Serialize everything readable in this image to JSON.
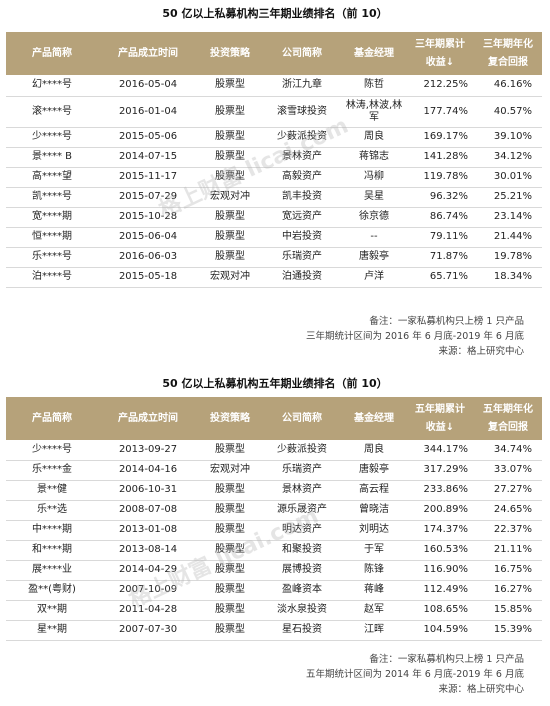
{
  "tables": [
    {
      "title": "50 亿以上私募机构三年期业绩排名（前 10）",
      "headers": {
        "name": "产品简称",
        "date": "产品成立时间",
        "strategy": "投资策略",
        "company": "公司简称",
        "manager": "基金经理",
        "ret_total": [
          "三年期累计",
          "收益↓"
        ],
        "ret_annual": [
          "三年期年化",
          "复合回报"
        ]
      },
      "rows": [
        {
          "name": "幻****号",
          "date": "2016-05-04",
          "strategy": "股票型",
          "company": "浙江九章",
          "manager": "陈哲",
          "ret_total": "212.25%",
          "ret_annual": "46.16%"
        },
        {
          "name": "滚****号",
          "date": "2016-01-04",
          "strategy": "股票型",
          "company": "滚雪球投资",
          "manager": "林涛,林波,林军",
          "ret_total": "177.74%",
          "ret_annual": "40.57%"
        },
        {
          "name": "少****号",
          "date": "2015-05-06",
          "strategy": "股票型",
          "company": "少薮派投资",
          "manager": "周良",
          "ret_total": "169.17%",
          "ret_annual": "39.10%"
        },
        {
          "name": "景**** B",
          "date": "2014-07-15",
          "strategy": "股票型",
          "company": "景林资产",
          "manager": "蒋锦志",
          "ret_total": "141.28%",
          "ret_annual": "34.12%"
        },
        {
          "name": "高****望",
          "date": "2015-11-17",
          "strategy": "股票型",
          "company": "高毅资产",
          "manager": "冯柳",
          "ret_total": "119.78%",
          "ret_annual": "30.01%"
        },
        {
          "name": "凯****号",
          "date": "2015-07-29",
          "strategy": "宏观对冲",
          "company": "凯丰投资",
          "manager": "吴星",
          "ret_total": "96.32%",
          "ret_annual": "25.21%"
        },
        {
          "name": "宽****期",
          "date": "2015-10-28",
          "strategy": "股票型",
          "company": "宽远资产",
          "manager": "徐京德",
          "ret_total": "86.74%",
          "ret_annual": "23.14%"
        },
        {
          "name": "恒****期",
          "date": "2015-06-04",
          "strategy": "股票型",
          "company": "中岩投资",
          "manager": "--",
          "ret_total": "79.11%",
          "ret_annual": "21.44%"
        },
        {
          "name": "乐****号",
          "date": "2016-06-03",
          "strategy": "股票型",
          "company": "乐瑞资产",
          "manager": "唐毅亭",
          "ret_total": "71.87%",
          "ret_annual": "19.78%"
        },
        {
          "name": "泊****号",
          "date": "2015-05-18",
          "strategy": "宏观对冲",
          "company": "泊通投资",
          "manager": "卢洋",
          "ret_total": "65.71%",
          "ret_annual": "18.34%"
        }
      ],
      "notes": [
        "备注：一家私募机构只上榜 1 只产品",
        "三年期统计区间为 2016 年 6 月底-2019 年 6 月底",
        "来源：格上研究中心"
      ]
    },
    {
      "title": "50 亿以上私募机构五年期业绩排名（前 10）",
      "headers": {
        "name": "产品简称",
        "date": "产品成立时间",
        "strategy": "投资策略",
        "company": "公司简称",
        "manager": "基金经理",
        "ret_total": [
          "五年期累计",
          "收益↓"
        ],
        "ret_annual": [
          "五年期年化",
          "复合回报"
        ]
      },
      "rows": [
        {
          "name": "少****号",
          "date": "2013-09-27",
          "strategy": "股票型",
          "company": "少薮派投资",
          "manager": "周良",
          "ret_total": "344.17%",
          "ret_annual": "34.74%"
        },
        {
          "name": "乐****金",
          "date": "2014-04-16",
          "strategy": "宏观对冲",
          "company": "乐瑞资产",
          "manager": "唐毅亭",
          "ret_total": "317.29%",
          "ret_annual": "33.07%"
        },
        {
          "name": "景**健",
          "date": "2006-10-31",
          "strategy": "股票型",
          "company": "景林资产",
          "manager": "高云程",
          "ret_total": "233.86%",
          "ret_annual": "27.27%"
        },
        {
          "name": "乐**选",
          "date": "2008-07-08",
          "strategy": "股票型",
          "company": "源乐晟资产",
          "manager": "曾晓洁",
          "ret_total": "200.89%",
          "ret_annual": "24.65%"
        },
        {
          "name": "中****期",
          "date": "2013-01-08",
          "strategy": "股票型",
          "company": "明达资产",
          "manager": "刘明达",
          "ret_total": "174.37%",
          "ret_annual": "22.37%"
        },
        {
          "name": "和****期",
          "date": "2013-08-14",
          "strategy": "股票型",
          "company": "和聚投资",
          "manager": "于军",
          "ret_total": "160.53%",
          "ret_annual": "21.11%"
        },
        {
          "name": "展****业",
          "date": "2014-04-29",
          "strategy": "股票型",
          "company": "展博投资",
          "manager": "陈锋",
          "ret_total": "116.90%",
          "ret_annual": "16.75%"
        },
        {
          "name": "盈**(粤财)",
          "date": "2007-10-09",
          "strategy": "股票型",
          "company": "盈峰资本",
          "manager": "蒋峰",
          "ret_total": "112.49%",
          "ret_annual": "16.27%"
        },
        {
          "name": "双**期",
          "date": "2011-04-28",
          "strategy": "股票型",
          "company": "淡水泉投资",
          "manager": "赵军",
          "ret_total": "108.65%",
          "ret_annual": "15.85%"
        },
        {
          "name": "星**期",
          "date": "2007-07-30",
          "strategy": "股票型",
          "company": "星石投资",
          "manager": "江晖",
          "ret_total": "104.59%",
          "ret_annual": "15.39%"
        }
      ],
      "notes": [
        "备注：一家私募机构只上榜 1 只产品",
        "五年期统计区间为 2014 年 6 月底-2019 年 6 月底",
        "来源：格上研究中心"
      ]
    }
  ],
  "watermark": "格上财富  licai.com",
  "colors": {
    "header_bg": "#b6a27a",
    "header_text": "#ffffff"
  }
}
